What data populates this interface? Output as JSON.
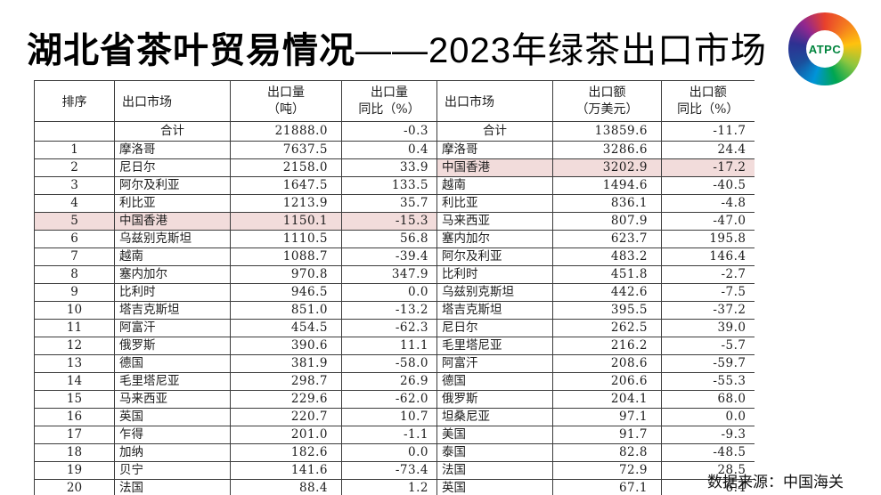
{
  "title": {
    "bold_part": "湖北省茶叶贸易情况",
    "light_part": "——2023年绿茶出口市场"
  },
  "logo": {
    "text": "ATPC"
  },
  "colors": {
    "highlight_pink": "#f2dcdb",
    "logo_text_green": "#00843d",
    "table_border": "#3c3c3c"
  },
  "table": {
    "headers": {
      "rank": "排序",
      "market1": "出口市场",
      "volume": [
        "出口量",
        "（吨）"
      ],
      "volume_yoy": [
        "出口量",
        "同比（%）"
      ],
      "market2": "出口市场",
      "value": [
        "出口额",
        "（万美元）"
      ],
      "value_yoy": [
        "出口额",
        "同比（%）"
      ]
    },
    "total_row": {
      "rank": "",
      "volume_market": "合计",
      "volume": "21888.0",
      "volume_yoy": "-0.3",
      "value_market": "合计",
      "value": "13859.6",
      "value_yoy": "-11.7"
    },
    "rows": [
      {
        "rank": "1",
        "volume_market": "摩洛哥",
        "volume": "7637.5",
        "volume_yoy": "0.4",
        "value_market": "摩洛哥",
        "value": "3286.6",
        "value_yoy": "24.4",
        "hl_left": false,
        "hl_right": false
      },
      {
        "rank": "2",
        "volume_market": "尼日尔",
        "volume": "2158.0",
        "volume_yoy": "33.9",
        "value_market": "中国香港",
        "value": "3202.9",
        "value_yoy": "-17.2",
        "hl_left": false,
        "hl_right": true
      },
      {
        "rank": "3",
        "volume_market": "阿尔及利亚",
        "volume": "1647.5",
        "volume_yoy": "133.5",
        "value_market": "越南",
        "value": "1494.6",
        "value_yoy": "-40.5",
        "hl_left": false,
        "hl_right": false
      },
      {
        "rank": "4",
        "volume_market": "利比亚",
        "volume": "1213.9",
        "volume_yoy": "35.7",
        "value_market": "利比亚",
        "value": "836.1",
        "value_yoy": "-4.8",
        "hl_left": false,
        "hl_right": false
      },
      {
        "rank": "5",
        "volume_market": "中国香港",
        "volume": "1150.1",
        "volume_yoy": "-15.3",
        "value_market": "马来西亚",
        "value": "807.9",
        "value_yoy": "-47.0",
        "hl_left": true,
        "hl_right": false
      },
      {
        "rank": "6",
        "volume_market": "乌兹别克斯坦",
        "volume": "1110.5",
        "volume_yoy": "56.8",
        "value_market": "塞内加尔",
        "value": "623.7",
        "value_yoy": "195.8",
        "hl_left": false,
        "hl_right": false
      },
      {
        "rank": "7",
        "volume_market": "越南",
        "volume": "1088.7",
        "volume_yoy": "-39.4",
        "value_market": "阿尔及利亚",
        "value": "483.2",
        "value_yoy": "146.4",
        "hl_left": false,
        "hl_right": false
      },
      {
        "rank": "8",
        "volume_market": "塞内加尔",
        "volume": "970.8",
        "volume_yoy": "347.9",
        "value_market": "比利时",
        "value": "451.8",
        "value_yoy": "-2.7",
        "hl_left": false,
        "hl_right": false
      },
      {
        "rank": "9",
        "volume_market": "比利时",
        "volume": "946.5",
        "volume_yoy": "0.0",
        "value_market": "乌兹别克斯坦",
        "value": "442.6",
        "value_yoy": "-7.5",
        "hl_left": false,
        "hl_right": false
      },
      {
        "rank": "10",
        "volume_market": "塔吉克斯坦",
        "volume": "851.0",
        "volume_yoy": "-13.2",
        "value_market": "塔吉克斯坦",
        "value": "395.5",
        "value_yoy": "-37.2",
        "hl_left": false,
        "hl_right": false
      },
      {
        "rank": "11",
        "volume_market": "阿富汗",
        "volume": "454.5",
        "volume_yoy": "-62.3",
        "value_market": "尼日尔",
        "value": "262.5",
        "value_yoy": "39.0",
        "hl_left": false,
        "hl_right": false
      },
      {
        "rank": "12",
        "volume_market": "俄罗斯",
        "volume": "390.6",
        "volume_yoy": "11.1",
        "value_market": "毛里塔尼亚",
        "value": "216.2",
        "value_yoy": "-5.7",
        "hl_left": false,
        "hl_right": false
      },
      {
        "rank": "13",
        "volume_market": "德国",
        "volume": "381.9",
        "volume_yoy": "-58.0",
        "value_market": "阿富汗",
        "value": "208.6",
        "value_yoy": "-59.7",
        "hl_left": false,
        "hl_right": false
      },
      {
        "rank": "14",
        "volume_market": "毛里塔尼亚",
        "volume": "298.7",
        "volume_yoy": "26.9",
        "value_market": "德国",
        "value": "206.6",
        "value_yoy": "-55.3",
        "hl_left": false,
        "hl_right": false
      },
      {
        "rank": "15",
        "volume_market": "马来西亚",
        "volume": "229.6",
        "volume_yoy": "-62.0",
        "value_market": "俄罗斯",
        "value": "204.1",
        "value_yoy": "68.0",
        "hl_left": false,
        "hl_right": false
      },
      {
        "rank": "16",
        "volume_market": "英国",
        "volume": "220.7",
        "volume_yoy": "10.7",
        "value_market": "坦桑尼亚",
        "value": "97.1",
        "value_yoy": "0.0",
        "hl_left": false,
        "hl_right": false
      },
      {
        "rank": "17",
        "volume_market": "乍得",
        "volume": "201.0",
        "volume_yoy": "-1.1",
        "value_market": "美国",
        "value": "91.7",
        "value_yoy": "-9.3",
        "hl_left": false,
        "hl_right": false
      },
      {
        "rank": "18",
        "volume_market": "加纳",
        "volume": "182.6",
        "volume_yoy": "0.0",
        "value_market": "泰国",
        "value": "82.8",
        "value_yoy": "-48.5",
        "hl_left": false,
        "hl_right": false
      },
      {
        "rank": "19",
        "volume_market": "贝宁",
        "volume": "141.6",
        "volume_yoy": "-73.4",
        "value_market": "法国",
        "value": "72.9",
        "value_yoy": "28.5",
        "hl_left": false,
        "hl_right": false
      },
      {
        "rank": "20",
        "volume_market": "法国",
        "volume": "88.4",
        "volume_yoy": "1.2",
        "value_market": "英国",
        "value": "67.1",
        "value_yoy": "6.4",
        "hl_left": false,
        "hl_right": false
      }
    ]
  },
  "footer": {
    "source": "数据来源：中国海关"
  }
}
